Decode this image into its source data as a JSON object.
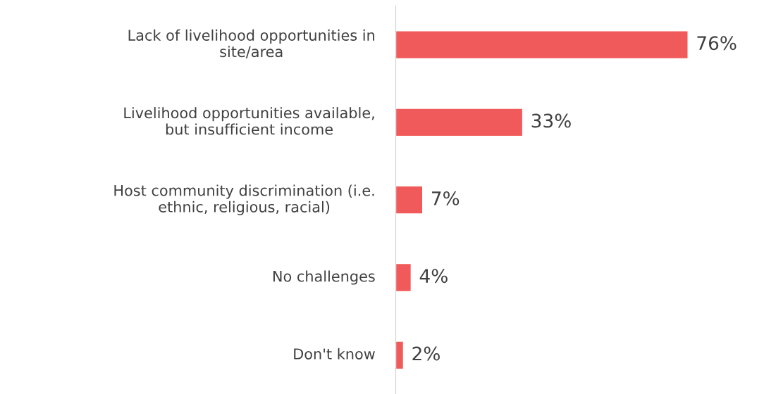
{
  "chart_data": {
    "type": "bar",
    "orientation": "horizontal",
    "categories": [
      "Lack of livelihood opportunities in site/area",
      "Livelihood opportunities available, but insufficient income",
      "Host community discrimination (i.e. ethnic, religious, racial)",
      "No challenges",
      "Don't know"
    ],
    "values": [
      76,
      33,
      7,
      4,
      2
    ],
    "value_labels": [
      "76%",
      "33%",
      "7%",
      "4%",
      "2%"
    ],
    "color": "#f05a5a",
    "grid": false,
    "legend": false,
    "tick_labels": "y"
  }
}
